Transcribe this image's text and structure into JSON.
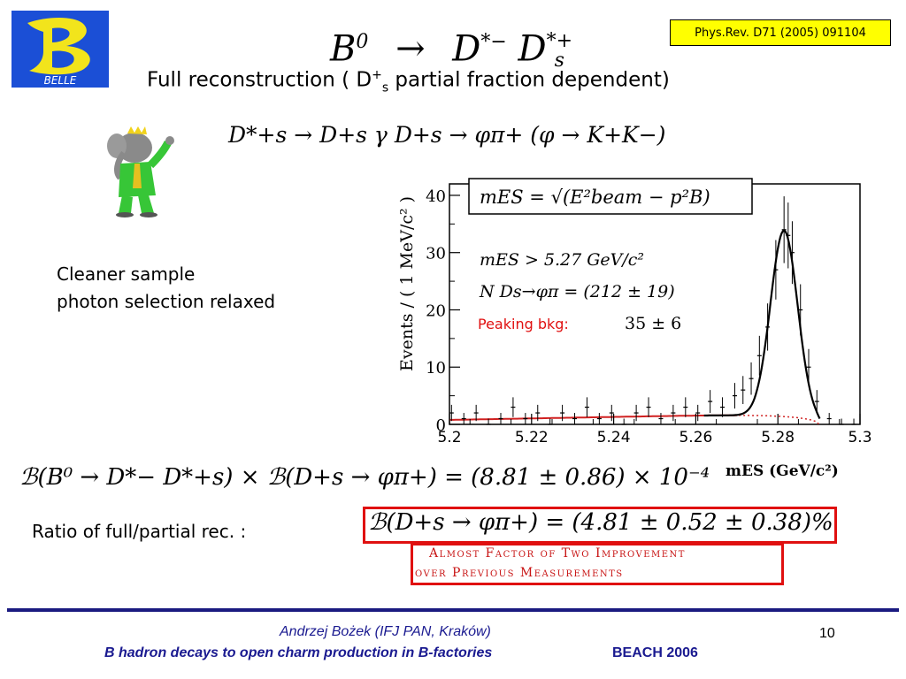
{
  "logo": {
    "letter": "B",
    "name": "BELLE",
    "colors": {
      "background": "#1b4fd6",
      "letter": "#f2e41c"
    }
  },
  "reference": "Phys.Rev. D71 (2005) 091104",
  "decay_title": {
    "initial": "B",
    "initial_sup": "0",
    "arrow": "→",
    "d1": "D",
    "d1_sup": "*−",
    "d2": "D",
    "d2_sub": "s",
    "d2_sup": "*+"
  },
  "subtitle": {
    "text": "Full reconstruction ( D",
    "sup": "+",
    "sub": "s",
    "rest": " partial fraction dependent)"
  },
  "channel_formula": "D*+s → D+s γ     D+s → φπ+ (φ → K+K−)",
  "note": {
    "line1": "Cleaner sample",
    "line2": "photon selection relaxed"
  },
  "plot": {
    "formula_box": "mES = √(E²beam − p²B)",
    "cut_text": "mES > 5.27 GeV/c²",
    "yield_text": "N Ds→φπ = (212 ± 19)",
    "peaking_label": "Peaking bkg:",
    "peaking_value": "35 ± 6",
    "colors": {
      "fit": "#000000",
      "background": "#d02020",
      "peaking_label": "#e01010"
    }
  },
  "chart_data": {
    "type": "scatter",
    "xlabel": "mES (GeV/c²)",
    "ylabel": "Events / ( 1 MeV/c² )",
    "xlim": [
      5.2,
      5.3
    ],
    "ylim": [
      0,
      42
    ],
    "x_ticks": [
      "5.2",
      "5.22",
      "5.24",
      "5.26",
      "5.28",
      "5.3"
    ],
    "y_ticks": [
      "0",
      "10",
      "20",
      "30",
      "40"
    ],
    "points": [
      [
        5.2005,
        2
      ],
      [
        5.2035,
        1
      ],
      [
        5.2065,
        2
      ],
      [
        5.2095,
        0
      ],
      [
        5.2125,
        1
      ],
      [
        5.2155,
        3
      ],
      [
        5.2185,
        1
      ],
      [
        5.2215,
        2
      ],
      [
        5.2245,
        0
      ],
      [
        5.2275,
        2
      ],
      [
        5.2305,
        1
      ],
      [
        5.2335,
        3
      ],
      [
        5.2365,
        1
      ],
      [
        5.2395,
        2
      ],
      [
        5.2425,
        0
      ],
      [
        5.2455,
        2
      ],
      [
        5.2485,
        3
      ],
      [
        5.2515,
        1
      ],
      [
        5.2545,
        2
      ],
      [
        5.2575,
        3
      ],
      [
        5.2605,
        2
      ],
      [
        5.2635,
        4
      ],
      [
        5.2665,
        3
      ],
      [
        5.2695,
        5
      ],
      [
        5.2715,
        6
      ],
      [
        5.2735,
        8
      ],
      [
        5.2755,
        12
      ],
      [
        5.2775,
        17
      ],
      [
        5.2795,
        27
      ],
      [
        5.2815,
        34
      ],
      [
        5.2825,
        33
      ],
      [
        5.2835,
        30
      ],
      [
        5.2855,
        20
      ],
      [
        5.2875,
        10
      ],
      [
        5.2895,
        4
      ],
      [
        5.2925,
        1
      ],
      [
        5.2955,
        0
      ],
      [
        5.2985,
        0
      ]
    ],
    "fit_curve": {
      "mean": 5.2815,
      "sigma": 0.0033,
      "amplitude": 32.5
    },
    "argus_level": 1.3
  },
  "br_product": "ℬ(B⁰ → D*− D*+s) × ℬ(D+s → φπ+) = (8.81 ± 0.86) × 10⁻⁴",
  "ratio_label": "Ratio of full/partial rec. :",
  "br_result": "ℬ(D+s → φπ+) = (4.81 ± 0.52 ± 0.38)%",
  "improvement": {
    "line1": "Almost Factor of Two Improvement",
    "line2": "over  Previous Measurements"
  },
  "footer": {
    "author": "Andrzej Bożek (IFJ PAN, Kraków)",
    "talk_title": "B hadron decays to open charm production in B-factories",
    "conference": "BEACH 2006",
    "page": "10"
  }
}
